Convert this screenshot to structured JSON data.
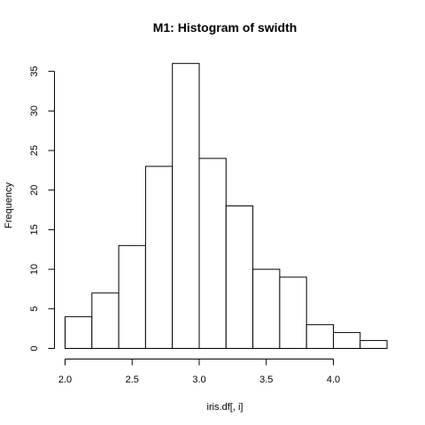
{
  "chart_data": {
    "type": "bar",
    "title": "M1: Histogram of swidth",
    "xlabel": "iris.df[, i]",
    "ylabel": "Frequency",
    "bins": [
      {
        "start": 2.0,
        "end": 2.2,
        "count": 4
      },
      {
        "start": 2.2,
        "end": 2.4,
        "count": 7
      },
      {
        "start": 2.4,
        "end": 2.6,
        "count": 13
      },
      {
        "start": 2.6,
        "end": 2.8,
        "count": 23
      },
      {
        "start": 2.8,
        "end": 3.0,
        "count": 36
      },
      {
        "start": 3.0,
        "end": 3.2,
        "count": 24
      },
      {
        "start": 3.2,
        "end": 3.4,
        "count": 18
      },
      {
        "start": 3.4,
        "end": 3.6,
        "count": 10
      },
      {
        "start": 3.6,
        "end": 3.8,
        "count": 9
      },
      {
        "start": 3.8,
        "end": 4.0,
        "count": 3
      },
      {
        "start": 4.0,
        "end": 4.2,
        "count": 2
      },
      {
        "start": 4.2,
        "end": 4.4,
        "count": 1
      }
    ],
    "x_ticks": [
      {
        "value": 2.0,
        "label": "2.0"
      },
      {
        "value": 2.5,
        "label": "2.5"
      },
      {
        "value": 3.0,
        "label": "3.0"
      },
      {
        "value": 3.5,
        "label": "3.5"
      },
      {
        "value": 4.0,
        "label": "4.0"
      }
    ],
    "y_ticks": [
      {
        "value": 0,
        "label": "0"
      },
      {
        "value": 5,
        "label": "5"
      },
      {
        "value": 10,
        "label": "10"
      },
      {
        "value": 15,
        "label": "15"
      },
      {
        "value": 20,
        "label": "20"
      },
      {
        "value": 25,
        "label": "25"
      },
      {
        "value": 30,
        "label": "30"
      },
      {
        "value": 35,
        "label": "35"
      }
    ],
    "xlim": [
      2.0,
      4.4
    ],
    "ylim": [
      0,
      36
    ],
    "grid": false,
    "legend": "none"
  }
}
